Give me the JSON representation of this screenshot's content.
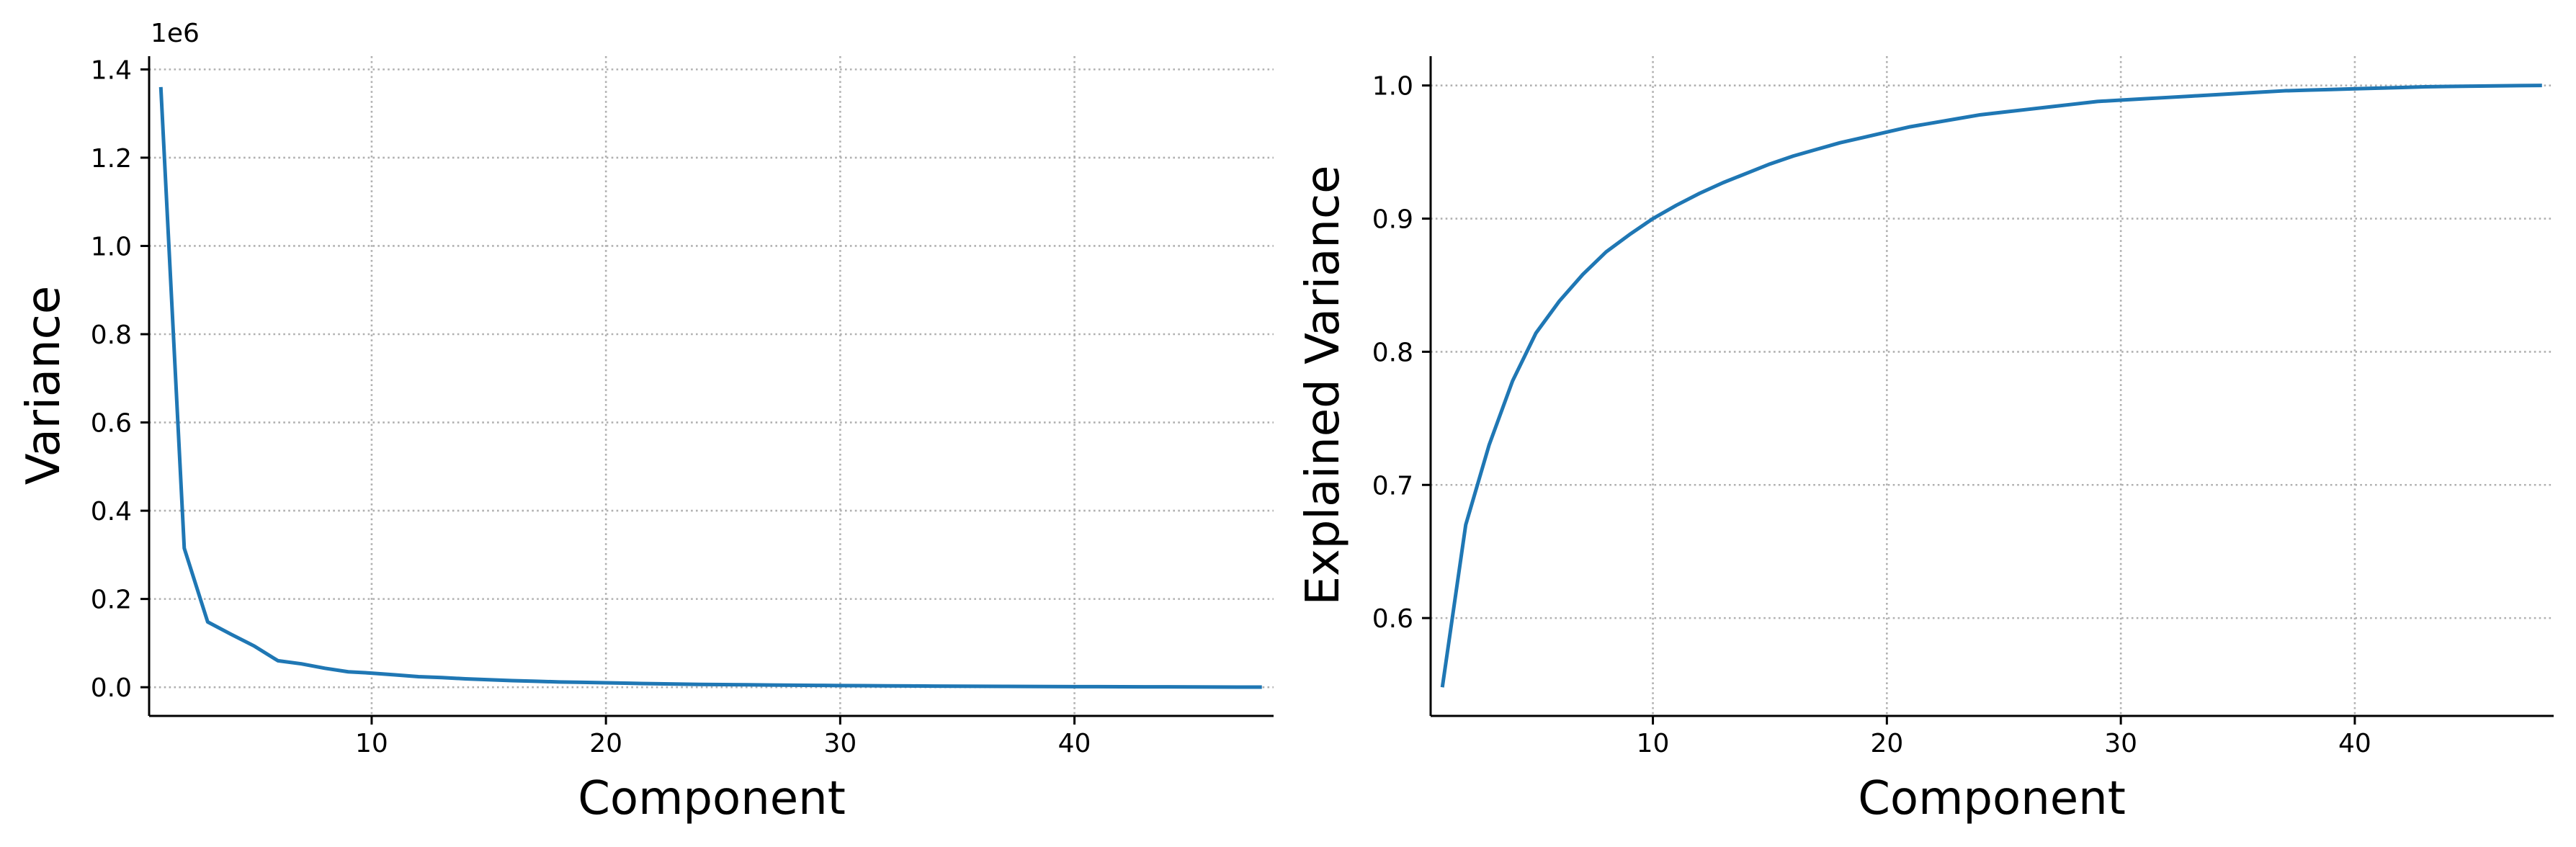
{
  "chart_data": [
    {
      "type": "line",
      "title": "",
      "xlabel": "Component",
      "ylabel": "Variance",
      "offset_text": "1e6",
      "xlim": [
        0.5,
        48.5
      ],
      "ylim": [
        -65000,
        1430000
      ],
      "x_ticks": [
        10,
        20,
        30,
        40
      ],
      "x_tick_labels": [
        "10",
        "20",
        "30",
        "40"
      ],
      "y_ticks": [
        0,
        200000,
        400000,
        600000,
        800000,
        1000000,
        1200000,
        1400000
      ],
      "y_tick_labels": [
        "0.0",
        "0.2",
        "0.4",
        "0.6",
        "0.8",
        "1.0",
        "1.2",
        "1.4"
      ],
      "grid": true,
      "color": "#1f77b4",
      "series": [
        {
          "x": [
            1,
            2,
            3,
            4,
            5,
            6,
            7,
            8,
            9,
            10,
            11,
            12,
            13,
            14,
            15,
            16,
            17,
            18,
            19,
            20,
            21,
            22,
            23,
            24,
            25,
            26,
            27,
            28,
            29,
            30,
            31,
            32,
            33,
            34,
            35,
            36,
            37,
            38,
            39,
            40,
            41,
            42,
            43,
            44,
            45,
            46,
            47,
            48
          ],
          "values": [
            1360000,
            315000,
            148000,
            120000,
            93000,
            60000,
            53000,
            43000,
            35000,
            32000,
            28000,
            24000,
            22000,
            19000,
            17000,
            15000,
            13500,
            12000,
            11000,
            10000,
            9000,
            8000,
            7200,
            6500,
            6000,
            5500,
            5000,
            4600,
            4200,
            3800,
            3500,
            3200,
            2900,
            2600,
            2400,
            2200,
            2000,
            1800,
            1600,
            1400,
            1250,
            1100,
            950,
            800,
            650,
            500,
            350,
            200
          ]
        }
      ]
    },
    {
      "type": "line",
      "title": "",
      "xlabel": "Component",
      "ylabel": "Explained Variance",
      "xlim": [
        0.5,
        48.5
      ],
      "ylim": [
        0.5265,
        1.022
      ],
      "x_ticks": [
        10,
        20,
        30,
        40
      ],
      "x_tick_labels": [
        "10",
        "20",
        "30",
        "40"
      ],
      "y_ticks": [
        0.6,
        0.7,
        0.8,
        0.9,
        1.0
      ],
      "y_tick_labels": [
        "0.6",
        "0.7",
        "0.8",
        "0.9",
        "1.0"
      ],
      "grid": true,
      "color": "#1f77b4",
      "series": [
        {
          "x": [
            1,
            2,
            3,
            4,
            5,
            6,
            7,
            8,
            9,
            10,
            11,
            12,
            13,
            14,
            15,
            16,
            17,
            18,
            19,
            20,
            21,
            22,
            23,
            24,
            25,
            26,
            27,
            28,
            29,
            30,
            31,
            32,
            33,
            34,
            35,
            36,
            37,
            38,
            39,
            40,
            41,
            42,
            43,
            44,
            45,
            46,
            47,
            48
          ],
          "values": [
            0.548,
            0.67,
            0.73,
            0.778,
            0.814,
            0.838,
            0.858,
            0.875,
            0.888,
            0.9,
            0.91,
            0.919,
            0.927,
            0.934,
            0.941,
            0.947,
            0.952,
            0.957,
            0.961,
            0.965,
            0.969,
            0.972,
            0.975,
            0.978,
            0.98,
            0.982,
            0.984,
            0.986,
            0.988,
            0.989,
            0.99,
            0.991,
            0.992,
            0.993,
            0.994,
            0.995,
            0.996,
            0.9965,
            0.997,
            0.9975,
            0.998,
            0.9985,
            0.999,
            0.9993,
            0.9995,
            0.9997,
            0.9999,
            1.0
          ]
        }
      ]
    }
  ]
}
